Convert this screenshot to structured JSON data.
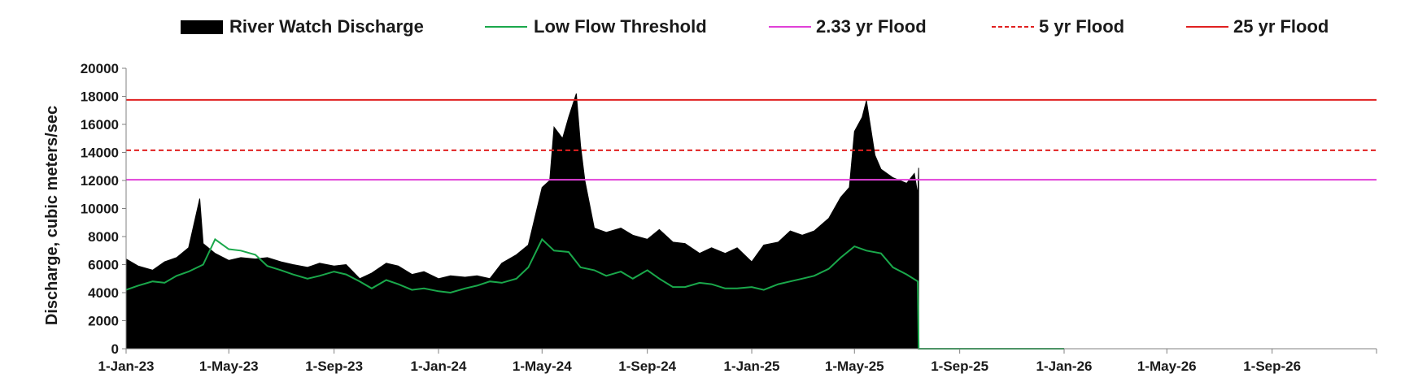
{
  "chart_data": {
    "type": "area",
    "ylabel": "Discharge, cubic meters/sec",
    "xlabel": "",
    "ylim": [
      0,
      20000
    ],
    "xlim": [
      "2023-01-01",
      "2027-01-01"
    ],
    "yticks": [
      0,
      2000,
      4000,
      6000,
      8000,
      10000,
      12000,
      14000,
      16000,
      18000,
      20000
    ],
    "ytick_labels": [
      "0",
      "2000",
      "4000",
      "6000",
      "8000",
      "10000",
      "12000",
      "14000",
      "16000",
      "18000",
      "20000"
    ],
    "xticks": [
      "2023-01-01",
      "2023-05-01",
      "2023-09-01",
      "2024-01-01",
      "2024-05-01",
      "2024-09-01",
      "2025-01-01",
      "2025-05-01",
      "2025-09-01",
      "2026-01-01",
      "2026-05-01",
      "2026-09-01"
    ],
    "xtick_labels": [
      "1-Jan-23",
      "1-May-23",
      "1-Sep-23",
      "1-Jan-24",
      "1-May-24",
      "1-Sep-24",
      "1-Jan-25",
      "1-May-25",
      "1-Sep-25",
      "1-Jan-26",
      "1-May-26",
      "1-Sep-26"
    ],
    "grid": false,
    "legend_position": "top",
    "series": [
      {
        "name": "River Watch Discharge",
        "style": "area",
        "color": "#000000",
        "x": [
          "2023-01-01",
          "2023-01-15",
          "2023-02-01",
          "2023-02-15",
          "2023-03-01",
          "2023-03-15",
          "2023-03-28",
          "2023-04-01",
          "2023-04-15",
          "2023-05-01",
          "2023-05-15",
          "2023-06-01",
          "2023-06-15",
          "2023-07-01",
          "2023-07-15",
          "2023-08-01",
          "2023-08-15",
          "2023-09-01",
          "2023-09-15",
          "2023-10-01",
          "2023-10-15",
          "2023-11-01",
          "2023-11-15",
          "2023-12-01",
          "2023-12-15",
          "2024-01-01",
          "2024-01-15",
          "2024-02-01",
          "2024-02-15",
          "2024-03-01",
          "2024-03-15",
          "2024-04-01",
          "2024-04-15",
          "2024-05-01",
          "2024-05-10",
          "2024-05-15",
          "2024-05-25",
          "2024-06-01",
          "2024-06-10",
          "2024-06-15",
          "2024-06-20",
          "2024-07-01",
          "2024-07-15",
          "2024-08-01",
          "2024-08-15",
          "2024-09-01",
          "2024-09-15",
          "2024-10-01",
          "2024-10-15",
          "2024-11-01",
          "2024-11-15",
          "2024-12-01",
          "2024-12-15",
          "2025-01-01",
          "2025-01-15",
          "2025-02-01",
          "2025-02-15",
          "2025-03-01",
          "2025-03-15",
          "2025-04-01",
          "2025-04-15",
          "2025-04-25",
          "2025-05-01",
          "2025-05-10",
          "2025-05-15",
          "2025-05-25",
          "2025-06-01",
          "2025-06-15",
          "2025-07-01",
          "2025-07-10",
          "2025-07-14",
          "2025-07-15"
        ],
        "values": [
          6400,
          5900,
          5600,
          6200,
          6500,
          7200,
          10700,
          7500,
          6800,
          6300,
          6500,
          6400,
          6500,
          6200,
          6000,
          5800,
          6100,
          5900,
          6000,
          5000,
          5400,
          6100,
          5900,
          5300,
          5500,
          5000,
          5200,
          5100,
          5200,
          5000,
          6100,
          6700,
          7400,
          11500,
          12000,
          15800,
          15000,
          16500,
          18200,
          14500,
          12000,
          8600,
          8300,
          8600,
          8100,
          7800,
          8500,
          7600,
          7500,
          6800,
          7200,
          6800,
          7200,
          6200,
          7400,
          7600,
          8400,
          8100,
          8400,
          9300,
          10800,
          11500,
          15500,
          16500,
          17700,
          13800,
          12800,
          12200,
          11800,
          12500,
          11000,
          12900
        ]
      },
      {
        "name": "Low Flow Threshold",
        "style": "line",
        "color": "#1aa84b",
        "x": [
          "2023-01-01",
          "2023-01-15",
          "2023-02-01",
          "2023-02-15",
          "2023-03-01",
          "2023-03-15",
          "2023-04-01",
          "2023-04-15",
          "2023-05-01",
          "2023-05-15",
          "2023-06-01",
          "2023-06-15",
          "2023-07-01",
          "2023-07-15",
          "2023-08-01",
          "2023-08-15",
          "2023-09-01",
          "2023-09-15",
          "2023-10-01",
          "2023-10-15",
          "2023-11-01",
          "2023-11-15",
          "2023-12-01",
          "2023-12-15",
          "2024-01-01",
          "2024-01-15",
          "2024-02-01",
          "2024-02-15",
          "2024-03-01",
          "2024-03-15",
          "2024-04-01",
          "2024-04-15",
          "2024-05-01",
          "2024-05-15",
          "2024-06-01",
          "2024-06-15",
          "2024-07-01",
          "2024-07-15",
          "2024-08-01",
          "2024-08-15",
          "2024-09-01",
          "2024-09-15",
          "2024-10-01",
          "2024-10-15",
          "2024-11-01",
          "2024-11-15",
          "2024-12-01",
          "2024-12-15",
          "2025-01-01",
          "2025-01-15",
          "2025-02-01",
          "2025-02-15",
          "2025-03-01",
          "2025-03-15",
          "2025-04-01",
          "2025-04-15",
          "2025-05-01",
          "2025-05-15",
          "2025-06-01",
          "2025-06-15",
          "2025-07-01",
          "2025-07-14",
          "2025-07-15",
          "2026-01-01"
        ],
        "values": [
          4200,
          4500,
          4800,
          4700,
          5200,
          5500,
          6000,
          7800,
          7100,
          7000,
          6700,
          5900,
          5600,
          5300,
          5000,
          5200,
          5500,
          5300,
          4800,
          4300,
          4900,
          4600,
          4200,
          4300,
          4100,
          4000,
          4300,
          4500,
          4800,
          4700,
          5000,
          5800,
          7800,
          7000,
          6900,
          5800,
          5600,
          5200,
          5500,
          5000,
          5600,
          5000,
          4400,
          4400,
          4700,
          4600,
          4300,
          4300,
          4400,
          4200,
          4600,
          4800,
          5000,
          5200,
          5700,
          6500,
          7300,
          7000,
          6800,
          5800,
          5300,
          4800,
          0,
          0
        ]
      },
      {
        "name": "2.33 yr Flood",
        "style": "hline",
        "color": "#e040d8",
        "value": 12050
      },
      {
        "name": "5 yr Flood",
        "style": "hline-dashed",
        "color": "#e02020",
        "value": 14150
      },
      {
        "name": "25 yr Flood",
        "style": "hline",
        "color": "#e02020",
        "value": 17750
      }
    ]
  }
}
